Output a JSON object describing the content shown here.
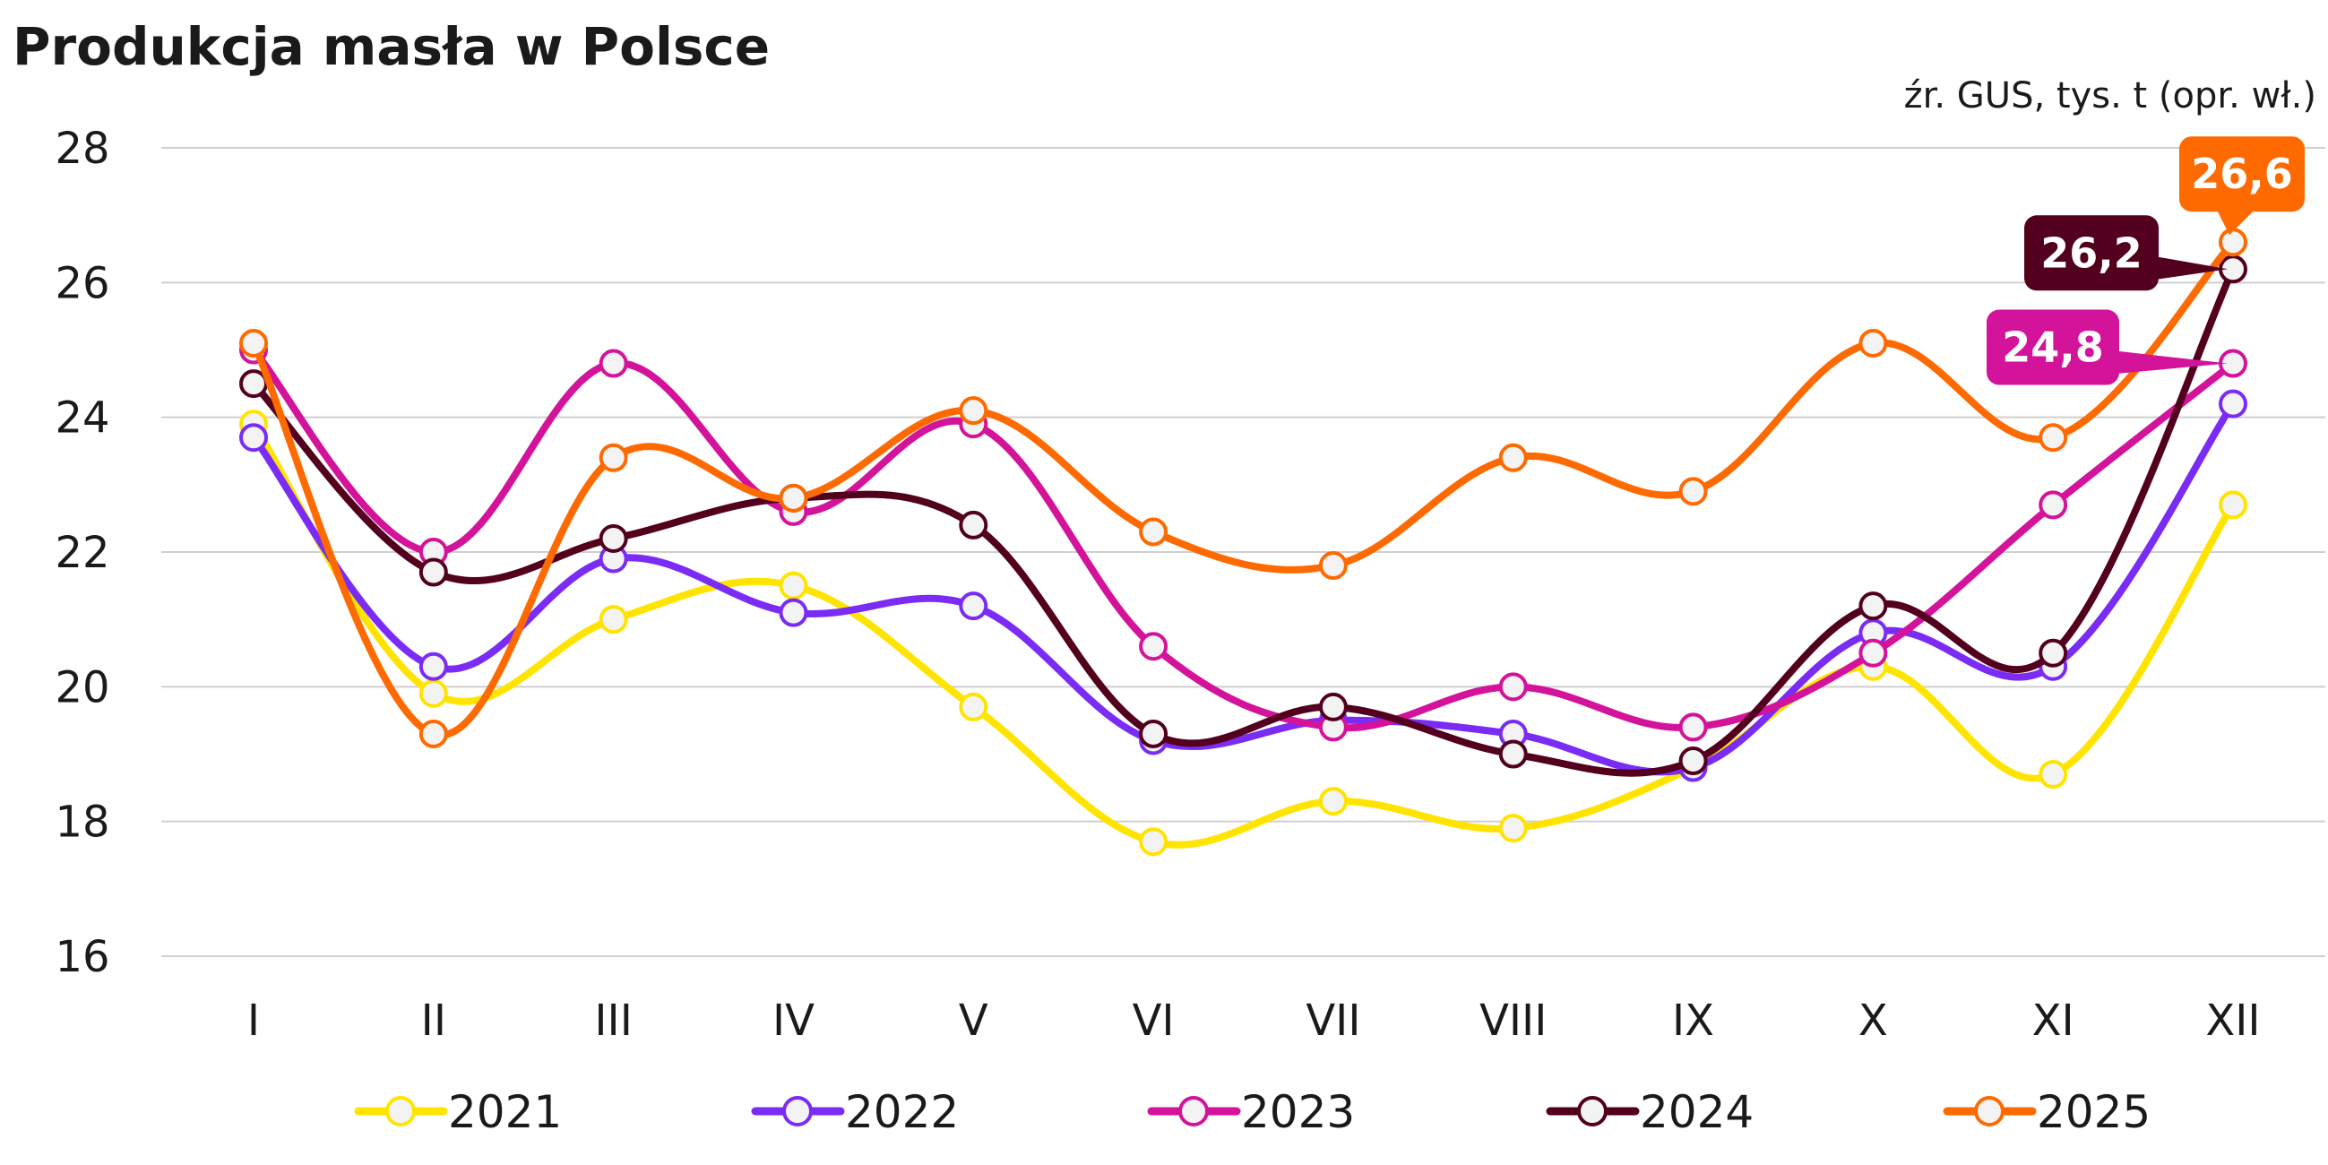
{
  "chart_data": {
    "type": "line",
    "title": "Produkcja masła w Polsce",
    "source_note": "źr. GUS, tys. t (opr. wł.)",
    "xlabel": "",
    "ylabel": "",
    "categories": [
      "I",
      "II",
      "III",
      "IV",
      "V",
      "VI",
      "VII",
      "VIII",
      "IX",
      "X",
      "XI",
      "XII"
    ],
    "yticks": [
      "16",
      "18",
      "20",
      "22",
      "24",
      "26",
      "28"
    ],
    "ylim": [
      16,
      28
    ],
    "grid": "horizontal",
    "legend_position": "bottom",
    "series": [
      {
        "name": "2021",
        "color": "#ffe400",
        "values": [
          23.9,
          19.9,
          21.0,
          21.5,
          19.7,
          17.7,
          18.3,
          17.9,
          18.8,
          20.3,
          18.7,
          22.7
        ]
      },
      {
        "name": "2022",
        "color": "#7a2cf5",
        "values": [
          23.7,
          20.3,
          21.9,
          21.1,
          21.2,
          19.2,
          19.5,
          19.3,
          18.8,
          20.8,
          20.3,
          24.2
        ]
      },
      {
        "name": "2023",
        "color": "#d4139b",
        "values": [
          25.0,
          22.0,
          24.8,
          22.6,
          23.9,
          20.6,
          19.4,
          20.0,
          19.4,
          20.5,
          22.7,
          24.8
        ]
      },
      {
        "name": "2024",
        "color": "#53001f",
        "values": [
          24.5,
          21.7,
          22.2,
          22.8,
          22.4,
          19.3,
          19.7,
          19.0,
          18.9,
          21.2,
          20.5,
          26.2
        ]
      },
      {
        "name": "2025",
        "color": "#ff6a00",
        "values": [
          25.1,
          19.3,
          23.4,
          22.8,
          24.1,
          22.3,
          21.8,
          23.4,
          22.9,
          25.1,
          23.7,
          26.6
        ]
      }
    ],
    "callouts": [
      {
        "series": "2025",
        "label": "26,6",
        "color": "#ff6a00"
      },
      {
        "series": "2024",
        "label": "26,2",
        "color": "#53001f"
      },
      {
        "series": "2023",
        "label": "24,8",
        "color": "#d4139b"
      }
    ]
  }
}
